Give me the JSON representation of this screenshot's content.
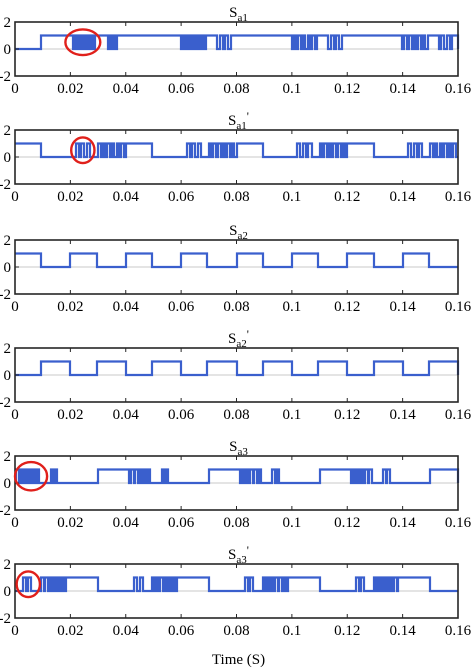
{
  "chart_data": {
    "type": "line",
    "line_color": "#3a5fcd",
    "highlight_color": "#e0201b",
    "grid": false,
    "x_ticks": [
      "0",
      "0.02",
      "0.04",
      "0.06",
      "0.08",
      "0.1",
      "0.12",
      "0.14",
      "0.16"
    ],
    "y_ticks": [
      "-2",
      "0",
      "2"
    ],
    "xlim": [
      0,
      0.16
    ],
    "ylim": [
      -2,
      2
    ],
    "xlabel": "Time (S)",
    "panels": [
      {
        "title_main": "S",
        "title_sub": "a1",
        "title_prime": "",
        "segments": [
          {
            "kind": "high",
            "start": 0.0095,
            "end": 0.0495
          },
          {
            "kind": "pwm",
            "start": 0.02,
            "end": 0.029,
            "count": 6
          },
          {
            "kind": "pwm",
            "start": 0.033,
            "end": 0.037,
            "count": 3
          },
          {
            "kind": "high",
            "start": 0.0495,
            "end": 0.0895
          },
          {
            "kind": "pwm",
            "start": 0.059,
            "end": 0.069,
            "count": 7
          },
          {
            "kind": "pwm",
            "start": 0.072,
            "end": 0.078,
            "count": 3
          },
          {
            "kind": "high",
            "start": 0.0895,
            "end": 0.1295
          },
          {
            "kind": "pwm",
            "start": 0.099,
            "end": 0.109,
            "count": 6
          },
          {
            "kind": "pwm",
            "start": 0.112,
            "end": 0.118,
            "count": 3
          },
          {
            "kind": "high",
            "start": 0.1295,
            "end": 0.16
          },
          {
            "kind": "pwm",
            "start": 0.139,
            "end": 0.149,
            "count": 6
          },
          {
            "kind": "pwm",
            "start": 0.152,
            "end": 0.158,
            "count": 3
          }
        ],
        "highlight": {
          "x": 0.0245,
          "rx": 0.0063,
          "ry": 0.95
        }
      },
      {
        "title_main": "S",
        "title_sub": "a1",
        "title_prime": "'",
        "segments": [
          {
            "kind": "high",
            "start": 0.0,
            "end": 0.0095
          },
          {
            "kind": "pwm",
            "start": 0.022,
            "end": 0.028,
            "count": 3
          },
          {
            "kind": "pwm",
            "start": 0.03,
            "end": 0.04,
            "count": 6
          },
          {
            "kind": "high",
            "start": 0.04,
            "end": 0.0495
          },
          {
            "kind": "pwm",
            "start": 0.062,
            "end": 0.068,
            "count": 3
          },
          {
            "kind": "pwm",
            "start": 0.07,
            "end": 0.08,
            "count": 6
          },
          {
            "kind": "high",
            "start": 0.08,
            "end": 0.0895
          },
          {
            "kind": "pwm",
            "start": 0.102,
            "end": 0.108,
            "count": 3
          },
          {
            "kind": "pwm",
            "start": 0.11,
            "end": 0.12,
            "count": 6
          },
          {
            "kind": "high",
            "start": 0.12,
            "end": 0.1295
          },
          {
            "kind": "pwm",
            "start": 0.142,
            "end": 0.148,
            "count": 3
          },
          {
            "kind": "pwm",
            "start": 0.15,
            "end": 0.16,
            "count": 6
          }
        ],
        "highlight": {
          "x": 0.0245,
          "rx": 0.0042,
          "ry": 0.95
        }
      },
      {
        "title_main": "S",
        "title_sub": "a2",
        "title_prime": "",
        "segments": [
          {
            "kind": "high",
            "start": 0.0,
            "end": 0.0095
          },
          {
            "kind": "high",
            "start": 0.02,
            "end": 0.0295
          },
          {
            "kind": "high",
            "start": 0.04,
            "end": 0.0495
          },
          {
            "kind": "high",
            "start": 0.06,
            "end": 0.0695
          },
          {
            "kind": "high",
            "start": 0.08,
            "end": 0.0895
          },
          {
            "kind": "high",
            "start": 0.1,
            "end": 0.1095
          },
          {
            "kind": "high",
            "start": 0.12,
            "end": 0.1295
          },
          {
            "kind": "high",
            "start": 0.14,
            "end": 0.1495
          }
        ],
        "highlight": null
      },
      {
        "title_main": "S",
        "title_sub": "a2",
        "title_prime": "'",
        "segments": [
          {
            "kind": "high",
            "start": 0.0095,
            "end": 0.02
          },
          {
            "kind": "high",
            "start": 0.0295,
            "end": 0.04
          },
          {
            "kind": "high",
            "start": 0.0495,
            "end": 0.06
          },
          {
            "kind": "high",
            "start": 0.0695,
            "end": 0.08
          },
          {
            "kind": "high",
            "start": 0.0895,
            "end": 0.1
          },
          {
            "kind": "high",
            "start": 0.1095,
            "end": 0.12
          },
          {
            "kind": "high",
            "start": 0.1295,
            "end": 0.14
          },
          {
            "kind": "high",
            "start": 0.1495,
            "end": 0.16
          }
        ],
        "highlight": null
      },
      {
        "title_main": "S",
        "title_sub": "a3",
        "title_prime": "",
        "segments": [
          {
            "kind": "pwm",
            "start": 0.0005,
            "end": 0.0095,
            "count": 6
          },
          {
            "kind": "pwm",
            "start": 0.013,
            "end": 0.016,
            "count": 2
          },
          {
            "kind": "high",
            "start": 0.03,
            "end": 0.0495
          },
          {
            "kind": "pwm",
            "start": 0.0405,
            "end": 0.0495,
            "count": 6
          },
          {
            "kind": "pwm",
            "start": 0.053,
            "end": 0.056,
            "count": 2
          },
          {
            "kind": "high",
            "start": 0.07,
            "end": 0.0895
          },
          {
            "kind": "pwm",
            "start": 0.0805,
            "end": 0.0895,
            "count": 6
          },
          {
            "kind": "pwm",
            "start": 0.093,
            "end": 0.096,
            "count": 2
          },
          {
            "kind": "high",
            "start": 0.11,
            "end": 0.1295
          },
          {
            "kind": "pwm",
            "start": 0.1205,
            "end": 0.1295,
            "count": 6
          },
          {
            "kind": "pwm",
            "start": 0.133,
            "end": 0.136,
            "count": 2
          },
          {
            "kind": "high",
            "start": 0.15,
            "end": 0.16
          }
        ],
        "highlight": {
          "x": 0.0058,
          "rx": 0.0058,
          "ry": 1.05
        }
      },
      {
        "title_main": "S",
        "title_sub": "a3",
        "title_prime": "'",
        "segments": [
          {
            "kind": "pwm",
            "start": 0.003,
            "end": 0.0065,
            "count": 2
          },
          {
            "kind": "pwm",
            "start": 0.0095,
            "end": 0.0185,
            "count": 6
          },
          {
            "kind": "high",
            "start": 0.0185,
            "end": 0.03
          },
          {
            "kind": "pwm",
            "start": 0.043,
            "end": 0.047,
            "count": 2
          },
          {
            "kind": "pwm",
            "start": 0.0495,
            "end": 0.0585,
            "count": 6
          },
          {
            "kind": "high",
            "start": 0.0585,
            "end": 0.07
          },
          {
            "kind": "pwm",
            "start": 0.083,
            "end": 0.087,
            "count": 2
          },
          {
            "kind": "pwm",
            "start": 0.0895,
            "end": 0.0985,
            "count": 6
          },
          {
            "kind": "high",
            "start": 0.0985,
            "end": 0.11
          },
          {
            "kind": "pwm",
            "start": 0.123,
            "end": 0.127,
            "count": 2
          },
          {
            "kind": "pwm",
            "start": 0.1295,
            "end": 0.1385,
            "count": 6
          },
          {
            "kind": "high",
            "start": 0.1385,
            "end": 0.15
          }
        ],
        "highlight": {
          "x": 0.0048,
          "rx": 0.0042,
          "ry": 0.95
        }
      }
    ]
  }
}
